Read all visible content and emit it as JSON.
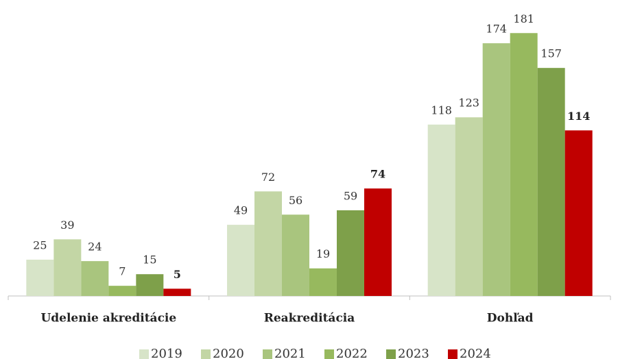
{
  "chart_data": {
    "type": "bar",
    "categories": [
      "Udelenie akreditácie",
      "Reakreditácia",
      "Dohľad"
    ],
    "series": [
      {
        "name": "2019",
        "color": "#d7e4c8",
        "values": [
          25,
          49,
          118
        ]
      },
      {
        "name": "2020",
        "color": "#c3d6a5",
        "values": [
          39,
          72,
          123
        ]
      },
      {
        "name": "2021",
        "color": "#a9c57e",
        "values": [
          24,
          56,
          174
        ]
      },
      {
        "name": "2022",
        "color": "#97b95e",
        "values": [
          7,
          19,
          181
        ]
      },
      {
        "name": "2023",
        "color": "#7ea04a",
        "values": [
          15,
          59,
          157
        ]
      },
      {
        "name": "2024",
        "color": "#c00000",
        "values": [
          5,
          74,
          114
        ]
      }
    ],
    "ylim": [
      0,
      200
    ],
    "grid": false,
    "legend": "bottom"
  }
}
